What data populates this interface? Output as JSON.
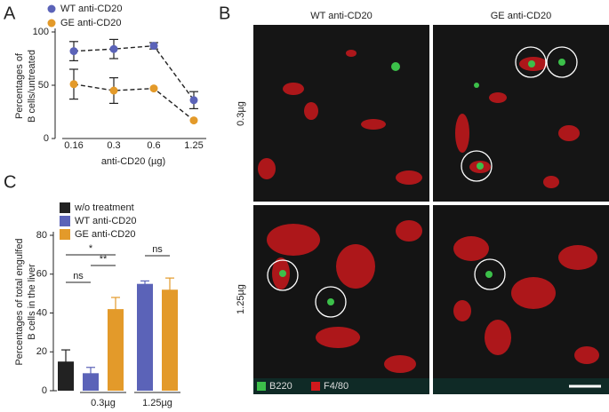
{
  "panels": [
    "A",
    "B",
    "C"
  ],
  "chart_data": [
    {
      "type": "line",
      "categories": [
        "0.16",
        "0.3",
        "0.6",
        "1.25"
      ],
      "xlabel": "anti-CD20 (µg)",
      "ylabel": [
        "Percentages of",
        "B cells/untreated"
      ],
      "ylim": [
        0,
        100
      ],
      "yticks": [
        0,
        50,
        100
      ],
      "series": [
        {
          "name": "WT anti-CD20",
          "color": "#5b63b8",
          "values": [
            82,
            84,
            87,
            36
          ],
          "errors": [
            9,
            9,
            3,
            8
          ]
        },
        {
          "name": "GE anti-CD20",
          "color": "#e39a2a",
          "values": [
            51,
            45,
            47,
            17
          ],
          "errors": [
            14,
            12,
            null,
            null
          ]
        }
      ]
    },
    {
      "type": "bar",
      "categories": [
        null,
        "0.3µg",
        "1.25µg"
      ],
      "ylabel": [
        "Percentages of total engulfed",
        "B cells in the liver"
      ],
      "ylim": [
        0,
        80
      ],
      "yticks": [
        0,
        20,
        40,
        60,
        80
      ],
      "series": [
        {
          "name": "w/o treatment",
          "color": "#222222",
          "values": [
            15,
            null,
            null
          ],
          "errors": [
            6,
            null,
            null
          ]
        },
        {
          "name": "WT anti-CD20",
          "color": "#5b63b8",
          "values": [
            null,
            9,
            55
          ],
          "errors": [
            null,
            3,
            1.5
          ]
        },
        {
          "name": "GE anti-CD20",
          "color": "#e39a2a",
          "values": [
            null,
            42,
            52
          ],
          "errors": [
            null,
            6,
            6
          ]
        }
      ],
      "annotations": [
        "*",
        "**",
        "ns",
        "ns"
      ]
    }
  ],
  "panel_b": {
    "columns": [
      "WT anti-CD20",
      "GE anti-CD20"
    ],
    "rows": [
      "0.3µg",
      "1.25µg"
    ],
    "legend": [
      "B220",
      "F4/80"
    ]
  }
}
